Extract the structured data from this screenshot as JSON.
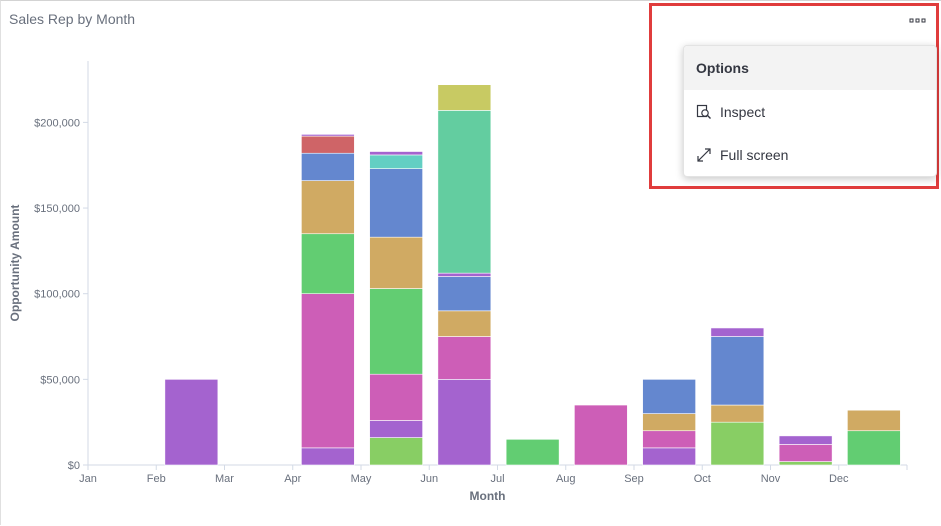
{
  "panel": {
    "title": "Sales Rep by Month"
  },
  "options_menu": {
    "header": "Options",
    "items": [
      {
        "label": "Inspect",
        "icon": "inspect-icon"
      },
      {
        "label": "Full screen",
        "icon": "fullscreen-icon"
      }
    ],
    "trigger_icon": "ellipsis-icon",
    "highlight_color": "#e03c3c"
  },
  "chart_data": {
    "type": "bar",
    "stacked": true,
    "xlabel": "Month",
    "ylabel": "Opportunity Amount",
    "ylim": [
      0,
      230000
    ],
    "yticks": [
      0,
      50000,
      100000,
      150000,
      200000
    ],
    "ytick_labels": [
      "$0",
      "$50,000",
      "$100,000",
      "$150,000",
      "$200,000"
    ],
    "x_tick_labels": [
      "Jan",
      "Feb",
      "Mar",
      "Apr",
      "May",
      "Jun",
      "Jul",
      "Aug",
      "Sep",
      "Oct",
      "Nov",
      "Dec"
    ],
    "grid": false,
    "legend": "none",
    "bars": [
      {
        "month": "Feb",
        "segments": [
          {
            "value": 50000,
            "color": "#a463cf"
          }
        ]
      },
      {
        "month": "Apr",
        "segments": [
          {
            "value": 10000,
            "color": "#a463cf"
          },
          {
            "value": 90000,
            "color": "#cd5eb7"
          },
          {
            "value": 35000,
            "color": "#62cd72"
          },
          {
            "value": 31000,
            "color": "#d0aa63"
          },
          {
            "value": 16000,
            "color": "#6487cf"
          },
          {
            "value": 10000,
            "color": "#cf6467"
          },
          {
            "value": 1000,
            "color": "#a463cf"
          }
        ]
      },
      {
        "month": "May",
        "segments": [
          {
            "value": 16000,
            "color": "#88ce64"
          },
          {
            "value": 10000,
            "color": "#a463cf"
          },
          {
            "value": 27000,
            "color": "#cd5eb7"
          },
          {
            "value": 50000,
            "color": "#62cd72"
          },
          {
            "value": 30000,
            "color": "#d0aa63"
          },
          {
            "value": 40000,
            "color": "#6487cf"
          },
          {
            "value": 8000,
            "color": "#63cfc3"
          },
          {
            "value": 2000,
            "color": "#a463cf"
          }
        ]
      },
      {
        "month": "Jun",
        "segments": [
          {
            "value": 50000,
            "color": "#a463cf"
          },
          {
            "value": 25000,
            "color": "#cd5eb7"
          },
          {
            "value": 15000,
            "color": "#d0aa63"
          },
          {
            "value": 20000,
            "color": "#6487cf"
          },
          {
            "value": 2000,
            "color": "#a463cf"
          },
          {
            "value": 95000,
            "color": "#63cda0"
          },
          {
            "value": 15000,
            "color": "#c8ca63"
          }
        ]
      },
      {
        "month": "Jul",
        "segments": [
          {
            "value": 15000,
            "color": "#62cd72"
          }
        ]
      },
      {
        "month": "Aug",
        "segments": [
          {
            "value": 35000,
            "color": "#cd5eb7"
          }
        ]
      },
      {
        "month": "Sep",
        "segments": [
          {
            "value": 10000,
            "color": "#a463cf"
          },
          {
            "value": 10000,
            "color": "#cd5eb7"
          },
          {
            "value": 10000,
            "color": "#d0aa63"
          },
          {
            "value": 20000,
            "color": "#6487cf"
          }
        ]
      },
      {
        "month": "Oct",
        "segments": [
          {
            "value": 25000,
            "color": "#88ce64"
          },
          {
            "value": 10000,
            "color": "#d0aa63"
          },
          {
            "value": 40000,
            "color": "#6487cf"
          },
          {
            "value": 5000,
            "color": "#a463cf"
          }
        ]
      },
      {
        "month": "Nov",
        "segments": [
          {
            "value": 2000,
            "color": "#88ce64"
          },
          {
            "value": 10000,
            "color": "#cd5eb7"
          },
          {
            "value": 5000,
            "color": "#a463cf"
          }
        ]
      },
      {
        "month": "Dec",
        "segments": [
          {
            "value": 20000,
            "color": "#62cd72"
          },
          {
            "value": 12000,
            "color": "#d0aa63"
          }
        ]
      }
    ]
  }
}
